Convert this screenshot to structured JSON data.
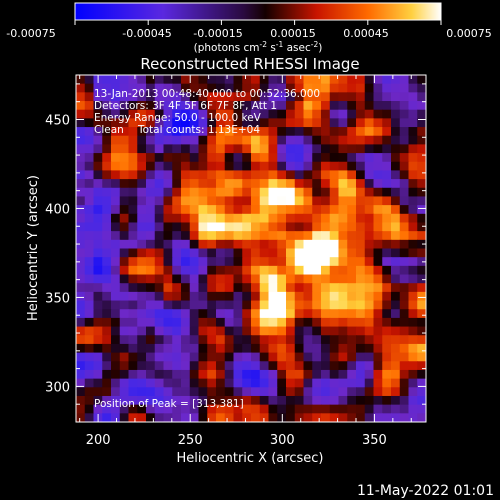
{
  "colorbar": {
    "ticks": [
      "-0.00075",
      "-0.00045",
      "-0.00015",
      "0.00015",
      "0.00045",
      "0.00075"
    ],
    "units_prefix": "(photons cm",
    "units_sup1": "-2",
    "units_mid1": " s",
    "units_sup2": "-1",
    "units_mid2": " asec",
    "units_sup3": "-2",
    "units_suffix": ")"
  },
  "chart_data": {
    "type": "heatmap",
    "title": "Reconstructed RHESSI Image",
    "xlabel": "Heliocentric X (arcsec)",
    "ylabel": "Heliocentric Y (arcsec)",
    "xlim": [
      188,
      378
    ],
    "ylim": [
      280,
      475
    ],
    "x_ticks": [
      "200",
      "250",
      "300",
      "350"
    ],
    "y_ticks": [
      "300",
      "350",
      "400",
      "450"
    ],
    "value_range": [
      -0.00075,
      0.00075
    ],
    "peak_position": [
      313,
      381
    ],
    "annotations": {
      "time_range": "13-Jan-2013 00:48:40.000 to 00:52:36.000",
      "detectors": "Detectors: 3F 4F 5F 6F 7F 8F, Att 1",
      "energy_range": "Energy Range: 50.0 - 100.0 keV",
      "method": "Clean",
      "total_counts": "Total counts: 1.13E+04",
      "peak_label": "Position of Peak = [313,381]"
    }
  },
  "footer": {
    "date": "11-May-2022 01:01"
  }
}
